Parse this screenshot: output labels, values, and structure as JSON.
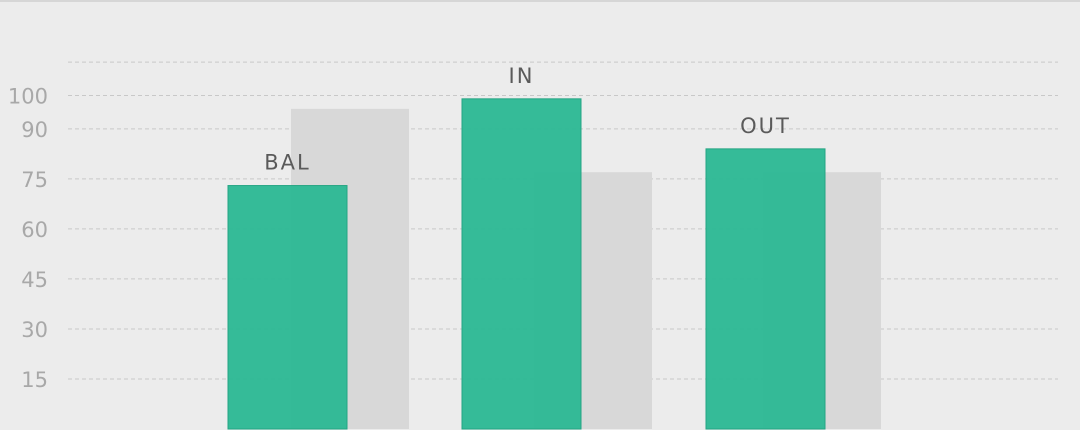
{
  "chart_data": {
    "type": "bar",
    "categories": [
      "BAL",
      "IN",
      "OUT"
    ],
    "series": [
      {
        "values": [
          73,
          99,
          84
        ],
        "color": "#2bb894"
      },
      {
        "values": [
          96,
          77,
          77
        ],
        "color": "#d8d8d8"
      }
    ],
    "title": "",
    "xlabel": "",
    "ylabel": "",
    "ylim": [
      0,
      115
    ],
    "yticks": [
      15,
      30,
      45,
      60,
      75,
      90,
      100
    ],
    "grid": true,
    "legend": "none"
  }
}
